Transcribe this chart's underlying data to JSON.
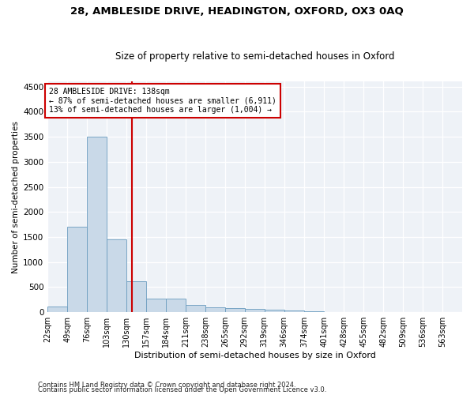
{
  "title": "28, AMBLESIDE DRIVE, HEADINGTON, OXFORD, OX3 0AQ",
  "subtitle": "Size of property relative to semi-detached houses in Oxford",
  "xlabel": "Distribution of semi-detached houses by size in Oxford",
  "ylabel": "Number of semi-detached properties",
  "footnote1": "Contains HM Land Registry data © Crown copyright and database right 2024.",
  "footnote2": "Contains public sector information licensed under the Open Government Licence v3.0.",
  "annotation_line1": "28 AMBLESIDE DRIVE: 138sqm",
  "annotation_line2": "← 87% of semi-detached houses are smaller (6,911)",
  "annotation_line3": "13% of semi-detached houses are larger (1,004) →",
  "property_size": 138,
  "bin_starts": [
    22,
    49,
    76,
    103,
    130,
    157,
    184,
    211,
    238,
    265,
    292,
    319,
    346,
    374,
    401,
    428,
    455,
    482,
    509,
    536,
    563
  ],
  "bin_width": 27,
  "bar_heights": [
    120,
    1700,
    3500,
    1450,
    620,
    270,
    270,
    150,
    100,
    80,
    60,
    50,
    30,
    15,
    8,
    5,
    3,
    2,
    1,
    1,
    0
  ],
  "bar_color": "#c9d9e8",
  "bar_edge_color": "#6a9cbf",
  "vline_color": "#cc0000",
  "background_color": "#eef2f7",
  "grid_color": "#ffffff",
  "ylim": [
    0,
    4600
  ],
  "yticks": [
    0,
    500,
    1000,
    1500,
    2000,
    2500,
    3000,
    3500,
    4000,
    4500
  ],
  "title_fontsize": 9.5,
  "subtitle_fontsize": 8.5,
  "ylabel_fontsize": 7.5,
  "xlabel_fontsize": 8,
  "tick_fontsize": 7.5,
  "xtick_fontsize": 7
}
